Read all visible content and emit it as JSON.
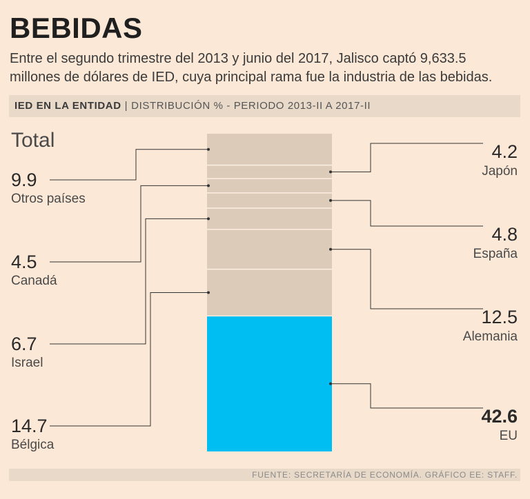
{
  "header": {
    "title": "BEBIDAS",
    "subtitle": "Entre el segundo trimestre del 2013 y junio del 2017, Jalisco captó 9,633.5 millones de dólares de IED, cuya principal rama fue la industria de las bebidas."
  },
  "band": {
    "strong": "IED EN LA ENTIDAD",
    "separator": "|",
    "rest": "DISTRIBUCIÓN % - PERIODO 2013-II A 2017-II"
  },
  "footer": {
    "source": "FUENTE: SECRETARÍA DE ECONOMÍA. GRÁFICO EE: STAFF."
  },
  "chart_data": {
    "type": "bar",
    "stacked": true,
    "title": "Total",
    "unit": "%",
    "stack_order_top_to_bottom": [
      "Otros países",
      "Japón",
      "Canadá",
      "España",
      "Israel",
      "Alemania",
      "Bélgica",
      "EU"
    ],
    "series": [
      {
        "name": "Otros países",
        "value": 9.9,
        "display": "9.9",
        "side": "left",
        "highlight": false
      },
      {
        "name": "Japón",
        "value": 4.2,
        "display": "4.2",
        "side": "right",
        "highlight": false
      },
      {
        "name": "Canadá",
        "value": 4.5,
        "display": "4.5",
        "side": "left",
        "highlight": false
      },
      {
        "name": "España",
        "value": 4.8,
        "display": "4.8",
        "side": "right",
        "highlight": false
      },
      {
        "name": "Israel",
        "value": 6.7,
        "display": "6.7",
        "side": "left",
        "highlight": false
      },
      {
        "name": "Alemania",
        "value": 12.5,
        "display": "12.5",
        "side": "right",
        "highlight": false
      },
      {
        "name": "Bélgica",
        "value": 14.7,
        "display": "14.7",
        "side": "left",
        "highlight": false
      },
      {
        "name": "EU",
        "value": 42.6,
        "display": "42.6",
        "side": "right",
        "highlight": true
      }
    ],
    "colors": {
      "segment": "#dccbb9",
      "highlight": "#00bdf2",
      "divider": "#fcefe3",
      "leader": "#333333",
      "value_text": "#2a2a2a",
      "label_text": "#4a4a4a"
    }
  }
}
